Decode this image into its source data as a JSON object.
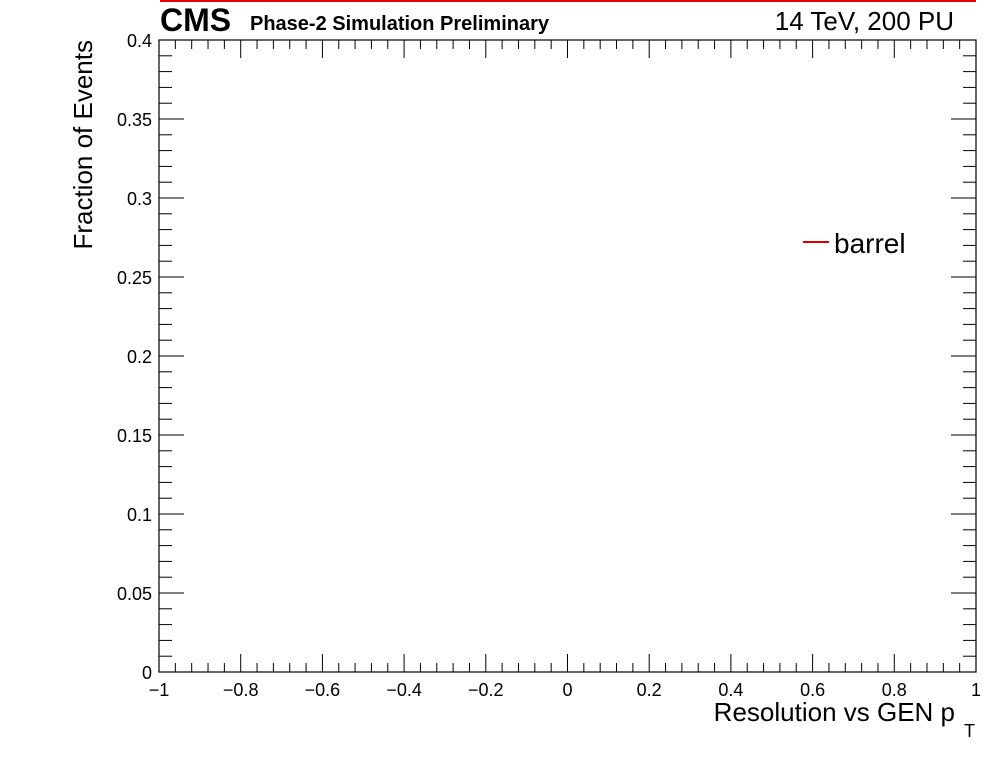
{
  "chart_data": {
    "type": "line",
    "title": "",
    "header": {
      "experiment": "CMS",
      "extra_text": "Phase-2 Simulation Preliminary",
      "lumi_text": "14 TeV, 200 PU"
    },
    "xlabel": "Resolution vs GEN p",
    "xlabel_subscript": "T",
    "ylabel": "Fraction of Events",
    "xlim": [
      -1,
      1
    ],
    "ylim": [
      0,
      0.4
    ],
    "x_ticks": [
      -1,
      -0.8,
      -0.6,
      -0.4,
      -0.2,
      0,
      0.2,
      0.4,
      0.6,
      0.8,
      1
    ],
    "x_tick_labels": [
      "−1",
      "−0.8",
      "−0.6",
      "−0.4",
      "−0.2",
      "0",
      "0.2",
      "0.4",
      "0.6",
      "0.8",
      "1"
    ],
    "y_ticks": [
      0,
      0.05,
      0.1,
      0.15,
      0.2,
      0.25,
      0.3,
      0.35,
      0.4
    ],
    "y_tick_labels": [
      "0",
      "0.05",
      "0.1",
      "0.15",
      "0.2",
      "0.25",
      "0.3",
      "0.35",
      "0.4"
    ],
    "grid": false,
    "legend_position": "top-right",
    "series": [
      {
        "name": "barrel",
        "color": "#e00000",
        "x": [],
        "y": []
      }
    ]
  }
}
